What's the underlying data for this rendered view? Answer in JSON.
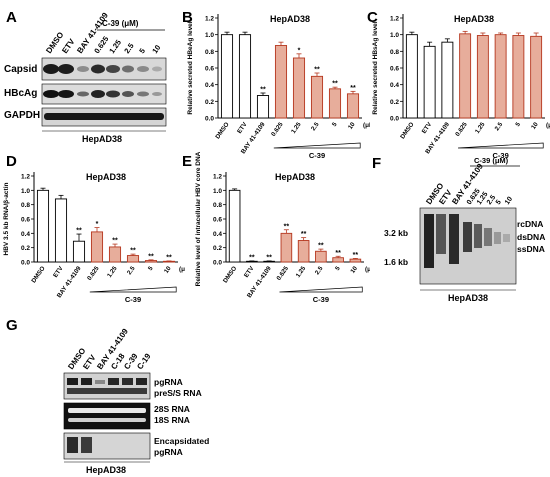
{
  "panels": {
    "A": "A",
    "B": "B",
    "C": "C",
    "D": "D",
    "E": "E",
    "F": "F",
    "G": "G"
  },
  "blotA": {
    "lanes": [
      "DMSO",
      "ETV",
      "BAY 41-4109",
      "0.625",
      "1.25",
      "2.5",
      "5",
      "10"
    ],
    "group_label": "C-39 (μM)",
    "rows": [
      "Capsid",
      "HBcAg",
      "GAPDH"
    ],
    "footer": "HepAD38"
  },
  "blotF": {
    "lanes": [
      "DMSO",
      "ETV",
      "BAY 41-4109",
      "0.625",
      "1.25",
      "2.5",
      "5",
      "10"
    ],
    "group_label": "C-39 (μM)",
    "markers": [
      "3.2 kb",
      "1.6 kb"
    ],
    "bands": [
      "rcDNA",
      "dsDNA",
      "ssDNA"
    ],
    "footer": "HepAD38"
  },
  "blotG": {
    "lanes": [
      "DMSO",
      "ETV",
      "BAY 41-4109",
      "C-18",
      "C-39",
      "C-19"
    ],
    "right_labels": [
      "pgRNA",
      "preS/S RNA",
      "28S RNA",
      "18S RNA",
      "Encapsidated",
      "pgRNA"
    ],
    "footer": "HepAD38"
  },
  "chart_data": [
    {
      "id": "B",
      "type": "bar",
      "title": "HepAD38",
      "ylabel": "Relative secreted HBeAg level",
      "categories": [
        "DMSO",
        "ETV",
        "BAY 41-4109",
        "0.625",
        "1.25",
        "2.5",
        "5",
        "10"
      ],
      "values": [
        1.0,
        1.0,
        0.27,
        0.87,
        0.72,
        0.5,
        0.35,
        0.29
      ],
      "errors": [
        0.03,
        0.03,
        0.03,
        0.04,
        0.05,
        0.04,
        0.02,
        0.03
      ],
      "sig": [
        "",
        "",
        "**",
        "",
        "*",
        "**",
        "**",
        "**"
      ],
      "yticks": [
        "0.0",
        "0.2",
        "0.4",
        "0.6",
        "0.8",
        "1.0",
        "1.2"
      ],
      "ylim": [
        0,
        1.2
      ],
      "unit": "(μM)",
      "group": "C-39",
      "colors": [
        "#ffffff",
        "#ffffff",
        "#ffffff",
        "#e7ad9b",
        "#e7ad9b",
        "#e7ad9b",
        "#e7ad9b",
        "#e7ad9b"
      ]
    },
    {
      "id": "C",
      "type": "bar",
      "title": "HepAD38",
      "ylabel": "Relative secreted HBsAg level",
      "categories": [
        "DMSO",
        "ETV",
        "BAY 41-4109",
        "0.625",
        "1.25",
        "2.5",
        "5",
        "10"
      ],
      "values": [
        1.0,
        0.86,
        0.91,
        1.01,
        0.99,
        1.0,
        0.99,
        0.98
      ],
      "errors": [
        0.03,
        0.05,
        0.04,
        0.03,
        0.03,
        0.02,
        0.03,
        0.04
      ],
      "sig": [
        "",
        "",
        "",
        "",
        "",
        "",
        "",
        ""
      ],
      "yticks": [
        "0.0",
        "0.2",
        "0.4",
        "0.6",
        "0.8",
        "1.0",
        "1.2"
      ],
      "ylim": [
        0,
        1.2
      ],
      "unit": "(μM)",
      "group": "C-39",
      "colors": [
        "#ffffff",
        "#ffffff",
        "#ffffff",
        "#e7ad9b",
        "#e7ad9b",
        "#e7ad9b",
        "#e7ad9b",
        "#e7ad9b"
      ]
    },
    {
      "id": "D",
      "type": "bar",
      "title": "HepAD38",
      "ylabel": "HBV 3.5 kb RNA/β-actin",
      "categories": [
        "DMSO",
        "ETV",
        "BAY 41-4109",
        "0.625",
        "1.25",
        "2.5",
        "5",
        "10"
      ],
      "values": [
        1.0,
        0.88,
        0.29,
        0.42,
        0.21,
        0.09,
        0.02,
        0.01
      ],
      "errors": [
        0.03,
        0.05,
        0.1,
        0.06,
        0.04,
        0.02,
        0.01,
        0.005
      ],
      "sig": [
        "",
        "",
        "**",
        "*",
        "**",
        "**",
        "**",
        "**"
      ],
      "yticks": [
        "0.0",
        "0.2",
        "0.4",
        "0.6",
        "0.8",
        "1.0",
        "1.2"
      ],
      "ylim": [
        0,
        1.2
      ],
      "unit": "(μM)",
      "group": "C-39",
      "colors": [
        "#ffffff",
        "#ffffff",
        "#ffffff",
        "#e7ad9b",
        "#e7ad9b",
        "#e7ad9b",
        "#e7ad9b",
        "#e7ad9b"
      ]
    },
    {
      "id": "E",
      "type": "bar",
      "title": "HepAD38",
      "ylabel": "Relative level of intracellular HBV core DNA",
      "categories": [
        "DMSO",
        "ETV",
        "BAY 41-4109",
        "0.625",
        "1.25",
        "2.5",
        "5",
        "10"
      ],
      "values": [
        1.0,
        0.01,
        0.01,
        0.4,
        0.3,
        0.15,
        0.06,
        0.04
      ],
      "errors": [
        0.02,
        0.005,
        0.005,
        0.05,
        0.04,
        0.03,
        0.02,
        0.01
      ],
      "sig": [
        "",
        "**",
        "**",
        "**",
        "**",
        "**",
        "**",
        "**"
      ],
      "yticks": [
        "0.0",
        "0.2",
        "0.4",
        "0.6",
        "0.8",
        "1.0",
        "1.2"
      ],
      "ylim": [
        0,
        1.2
      ],
      "unit": "(μM)",
      "group": "C-39",
      "colors": [
        "#ffffff",
        "#ffffff",
        "#ffffff",
        "#e7ad9b",
        "#e7ad9b",
        "#e7ad9b",
        "#e7ad9b",
        "#e7ad9b"
      ]
    }
  ]
}
